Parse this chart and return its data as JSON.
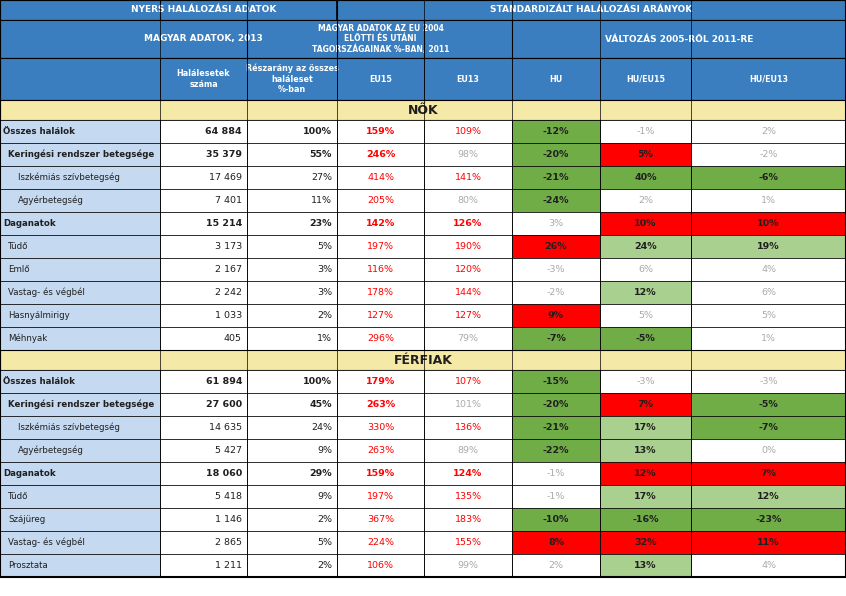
{
  "nok_rows": [
    {
      "label": "Összes halálok",
      "bold": true,
      "indent": 0,
      "vals": [
        "64 884",
        "100%",
        "159%",
        "109%",
        "-12%",
        "-1%",
        "2%"
      ],
      "bg": [
        null,
        null,
        null,
        null,
        "lgreen",
        null,
        null
      ],
      "tc": [
        "dark",
        "dark",
        "red",
        "red",
        "dark",
        "gray",
        "gray"
      ],
      "bv": [
        true,
        true,
        true,
        false,
        true,
        false,
        false
      ]
    },
    {
      "label": "Keringési rendszer betegsége",
      "bold": true,
      "indent": 1,
      "vals": [
        "35 379",
        "55%",
        "246%",
        "98%",
        "-20%",
        "5%",
        "-2%"
      ],
      "bg": [
        null,
        null,
        null,
        null,
        "lgreen",
        "red",
        null
      ],
      "tc": [
        "dark",
        "dark",
        "red",
        "gray",
        "dark",
        "dark",
        "gray"
      ],
      "bv": [
        true,
        true,
        true,
        false,
        true,
        true,
        false
      ]
    },
    {
      "label": "Iszkémiás szívbetegség",
      "bold": false,
      "indent": 2,
      "vals": [
        "17 469",
        "27%",
        "414%",
        "141%",
        "-21%",
        "40%",
        "-6%"
      ],
      "bg": [
        null,
        null,
        null,
        null,
        "lgreen",
        "lgreen",
        "lgreen"
      ],
      "tc": [
        "dark",
        "dark",
        "red",
        "red",
        "dark",
        "dark",
        "dark"
      ],
      "bv": [
        false,
        false,
        false,
        false,
        true,
        true,
        false
      ]
    },
    {
      "label": "Agyérbetegség",
      "bold": false,
      "indent": 2,
      "vals": [
        "7 401",
        "11%",
        "205%",
        "80%",
        "-24%",
        "2%",
        "1%"
      ],
      "bg": [
        null,
        null,
        null,
        null,
        "lgreen",
        null,
        null
      ],
      "tc": [
        "dark",
        "dark",
        "red",
        "gray",
        "dark",
        "gray",
        "gray"
      ],
      "bv": [
        false,
        false,
        false,
        false,
        true,
        false,
        false
      ]
    },
    {
      "label": "Daganatok",
      "bold": true,
      "indent": 0,
      "vals": [
        "15 214",
        "23%",
        "142%",
        "126%",
        "3%",
        "10%",
        "10%"
      ],
      "bg": [
        null,
        null,
        null,
        null,
        null,
        "red",
        "red"
      ],
      "tc": [
        "dark",
        "dark",
        "red",
        "red",
        "gray",
        "dark",
        "dark"
      ],
      "bv": [
        true,
        true,
        true,
        true,
        false,
        true,
        true
      ]
    },
    {
      "label": "Tüdő",
      "bold": false,
      "indent": 1,
      "vals": [
        "3 173",
        "5%",
        "197%",
        "190%",
        "26%",
        "24%",
        "19%"
      ],
      "bg": [
        null,
        null,
        null,
        null,
        "red",
        "lgreen2",
        "lgreen2"
      ],
      "tc": [
        "dark",
        "dark",
        "red",
        "red",
        "dark",
        "dark",
        "dark"
      ],
      "bv": [
        false,
        false,
        false,
        false,
        true,
        false,
        false
      ]
    },
    {
      "label": "Emlő",
      "bold": false,
      "indent": 1,
      "vals": [
        "2 167",
        "3%",
        "116%",
        "120%",
        "-3%",
        "6%",
        "4%"
      ],
      "bg": [
        null,
        null,
        null,
        null,
        null,
        null,
        null
      ],
      "tc": [
        "dark",
        "dark",
        "red",
        "red",
        "gray",
        "gray",
        "gray"
      ],
      "bv": [
        false,
        false,
        false,
        false,
        false,
        false,
        false
      ]
    },
    {
      "label": "Vastag- és végbél",
      "bold": false,
      "indent": 1,
      "vals": [
        "2 242",
        "3%",
        "178%",
        "144%",
        "-2%",
        "12%",
        "6%"
      ],
      "bg": [
        null,
        null,
        null,
        null,
        null,
        "lgreen2",
        null
      ],
      "tc": [
        "dark",
        "dark",
        "red",
        "red",
        "gray",
        "dark",
        "gray"
      ],
      "bv": [
        false,
        false,
        false,
        false,
        false,
        false,
        false
      ]
    },
    {
      "label": "Hasnyálmirigy",
      "bold": false,
      "indent": 1,
      "vals": [
        "1 033",
        "2%",
        "127%",
        "127%",
        "9%",
        "5%",
        "5%"
      ],
      "bg": [
        null,
        null,
        null,
        null,
        "red",
        null,
        null
      ],
      "tc": [
        "dark",
        "dark",
        "red",
        "red",
        "dark",
        "gray",
        "gray"
      ],
      "bv": [
        false,
        false,
        false,
        false,
        true,
        false,
        false
      ]
    },
    {
      "label": "Méhnyak",
      "bold": false,
      "indent": 1,
      "vals": [
        "405",
        "1%",
        "296%",
        "79%",
        "-7%",
        "-5%",
        "1%"
      ],
      "bg": [
        null,
        null,
        null,
        null,
        "lgreen",
        "lgreen",
        null
      ],
      "tc": [
        "dark",
        "dark",
        "red",
        "gray",
        "dark",
        "dark",
        "gray"
      ],
      "bv": [
        false,
        false,
        false,
        false,
        false,
        false,
        false
      ]
    }
  ],
  "ferfiak_rows": [
    {
      "label": "Összes halálok",
      "bold": true,
      "indent": 0,
      "vals": [
        "61 894",
        "100%",
        "179%",
        "107%",
        "-15%",
        "-3%",
        "-3%"
      ],
      "bg": [
        null,
        null,
        null,
        null,
        "lgreen",
        null,
        null
      ],
      "tc": [
        "dark",
        "dark",
        "red",
        "red",
        "dark",
        "gray",
        "gray"
      ],
      "bv": [
        true,
        true,
        true,
        false,
        true,
        false,
        false
      ]
    },
    {
      "label": "Keringési rendszer betegsége",
      "bold": true,
      "indent": 1,
      "vals": [
        "27 600",
        "45%",
        "263%",
        "101%",
        "-20%",
        "7%",
        "-5%"
      ],
      "bg": [
        null,
        null,
        null,
        null,
        "lgreen",
        "red",
        "lgreen"
      ],
      "tc": [
        "dark",
        "dark",
        "red",
        "gray",
        "dark",
        "dark",
        "dark"
      ],
      "bv": [
        true,
        true,
        true,
        false,
        true,
        true,
        false
      ]
    },
    {
      "label": "Iszkémiás szívbetegség",
      "bold": false,
      "indent": 2,
      "vals": [
        "14 635",
        "24%",
        "330%",
        "136%",
        "-21%",
        "17%",
        "-7%"
      ],
      "bg": [
        null,
        null,
        null,
        null,
        "lgreen",
        "lgreen2",
        "lgreen"
      ],
      "tc": [
        "dark",
        "dark",
        "red",
        "red",
        "dark",
        "dark",
        "dark"
      ],
      "bv": [
        false,
        false,
        false,
        false,
        true,
        false,
        false
      ]
    },
    {
      "label": "Agyérbetegség",
      "bold": false,
      "indent": 2,
      "vals": [
        "5 427",
        "9%",
        "263%",
        "89%",
        "-22%",
        "13%",
        "0%"
      ],
      "bg": [
        null,
        null,
        null,
        null,
        "lgreen",
        "lgreen2",
        null
      ],
      "tc": [
        "dark",
        "dark",
        "red",
        "gray",
        "dark",
        "dark",
        "gray"
      ],
      "bv": [
        false,
        false,
        false,
        false,
        true,
        false,
        false
      ]
    },
    {
      "label": "Daganatok",
      "bold": true,
      "indent": 0,
      "vals": [
        "18 060",
        "29%",
        "159%",
        "124%",
        "-1%",
        "12%",
        "7%"
      ],
      "bg": [
        null,
        null,
        null,
        null,
        null,
        "red",
        "red"
      ],
      "tc": [
        "dark",
        "dark",
        "red",
        "red",
        "gray",
        "dark",
        "dark"
      ],
      "bv": [
        true,
        true,
        true,
        true,
        false,
        true,
        true
      ]
    },
    {
      "label": "Tüdő",
      "bold": false,
      "indent": 1,
      "vals": [
        "5 418",
        "9%",
        "197%",
        "135%",
        "-1%",
        "17%",
        "12%"
      ],
      "bg": [
        null,
        null,
        null,
        null,
        null,
        "lgreen2",
        "lgreen2"
      ],
      "tc": [
        "dark",
        "dark",
        "red",
        "red",
        "gray",
        "dark",
        "dark"
      ],
      "bv": [
        false,
        false,
        false,
        false,
        false,
        false,
        false
      ]
    },
    {
      "label": "Szájüreg",
      "bold": false,
      "indent": 1,
      "vals": [
        "1 146",
        "2%",
        "367%",
        "183%",
        "-10%",
        "-16%",
        "-23%"
      ],
      "bg": [
        null,
        null,
        null,
        null,
        "lgreen",
        "lgreen",
        "lgreen"
      ],
      "tc": [
        "dark",
        "dark",
        "red",
        "red",
        "dark",
        "dark",
        "dark"
      ],
      "bv": [
        false,
        false,
        false,
        false,
        false,
        false,
        false
      ]
    },
    {
      "label": "Vastag- és végbél",
      "bold": false,
      "indent": 1,
      "vals": [
        "2 865",
        "5%",
        "224%",
        "155%",
        "8%",
        "32%",
        "11%"
      ],
      "bg": [
        null,
        null,
        null,
        null,
        "red",
        "red",
        "red"
      ],
      "tc": [
        "dark",
        "dark",
        "red",
        "red",
        "dark",
        "dark",
        "dark"
      ],
      "bv": [
        false,
        false,
        false,
        false,
        true,
        true,
        true
      ]
    },
    {
      "label": "Prosztata",
      "bold": false,
      "indent": 1,
      "vals": [
        "1 211",
        "2%",
        "106%",
        "99%",
        "2%",
        "13%",
        "4%"
      ],
      "bg": [
        null,
        null,
        null,
        null,
        null,
        "lgreen2",
        null
      ],
      "tc": [
        "dark",
        "dark",
        "red",
        "gray",
        "gray",
        "dark",
        "gray"
      ],
      "bv": [
        false,
        false,
        false,
        false,
        false,
        false,
        false
      ]
    }
  ]
}
